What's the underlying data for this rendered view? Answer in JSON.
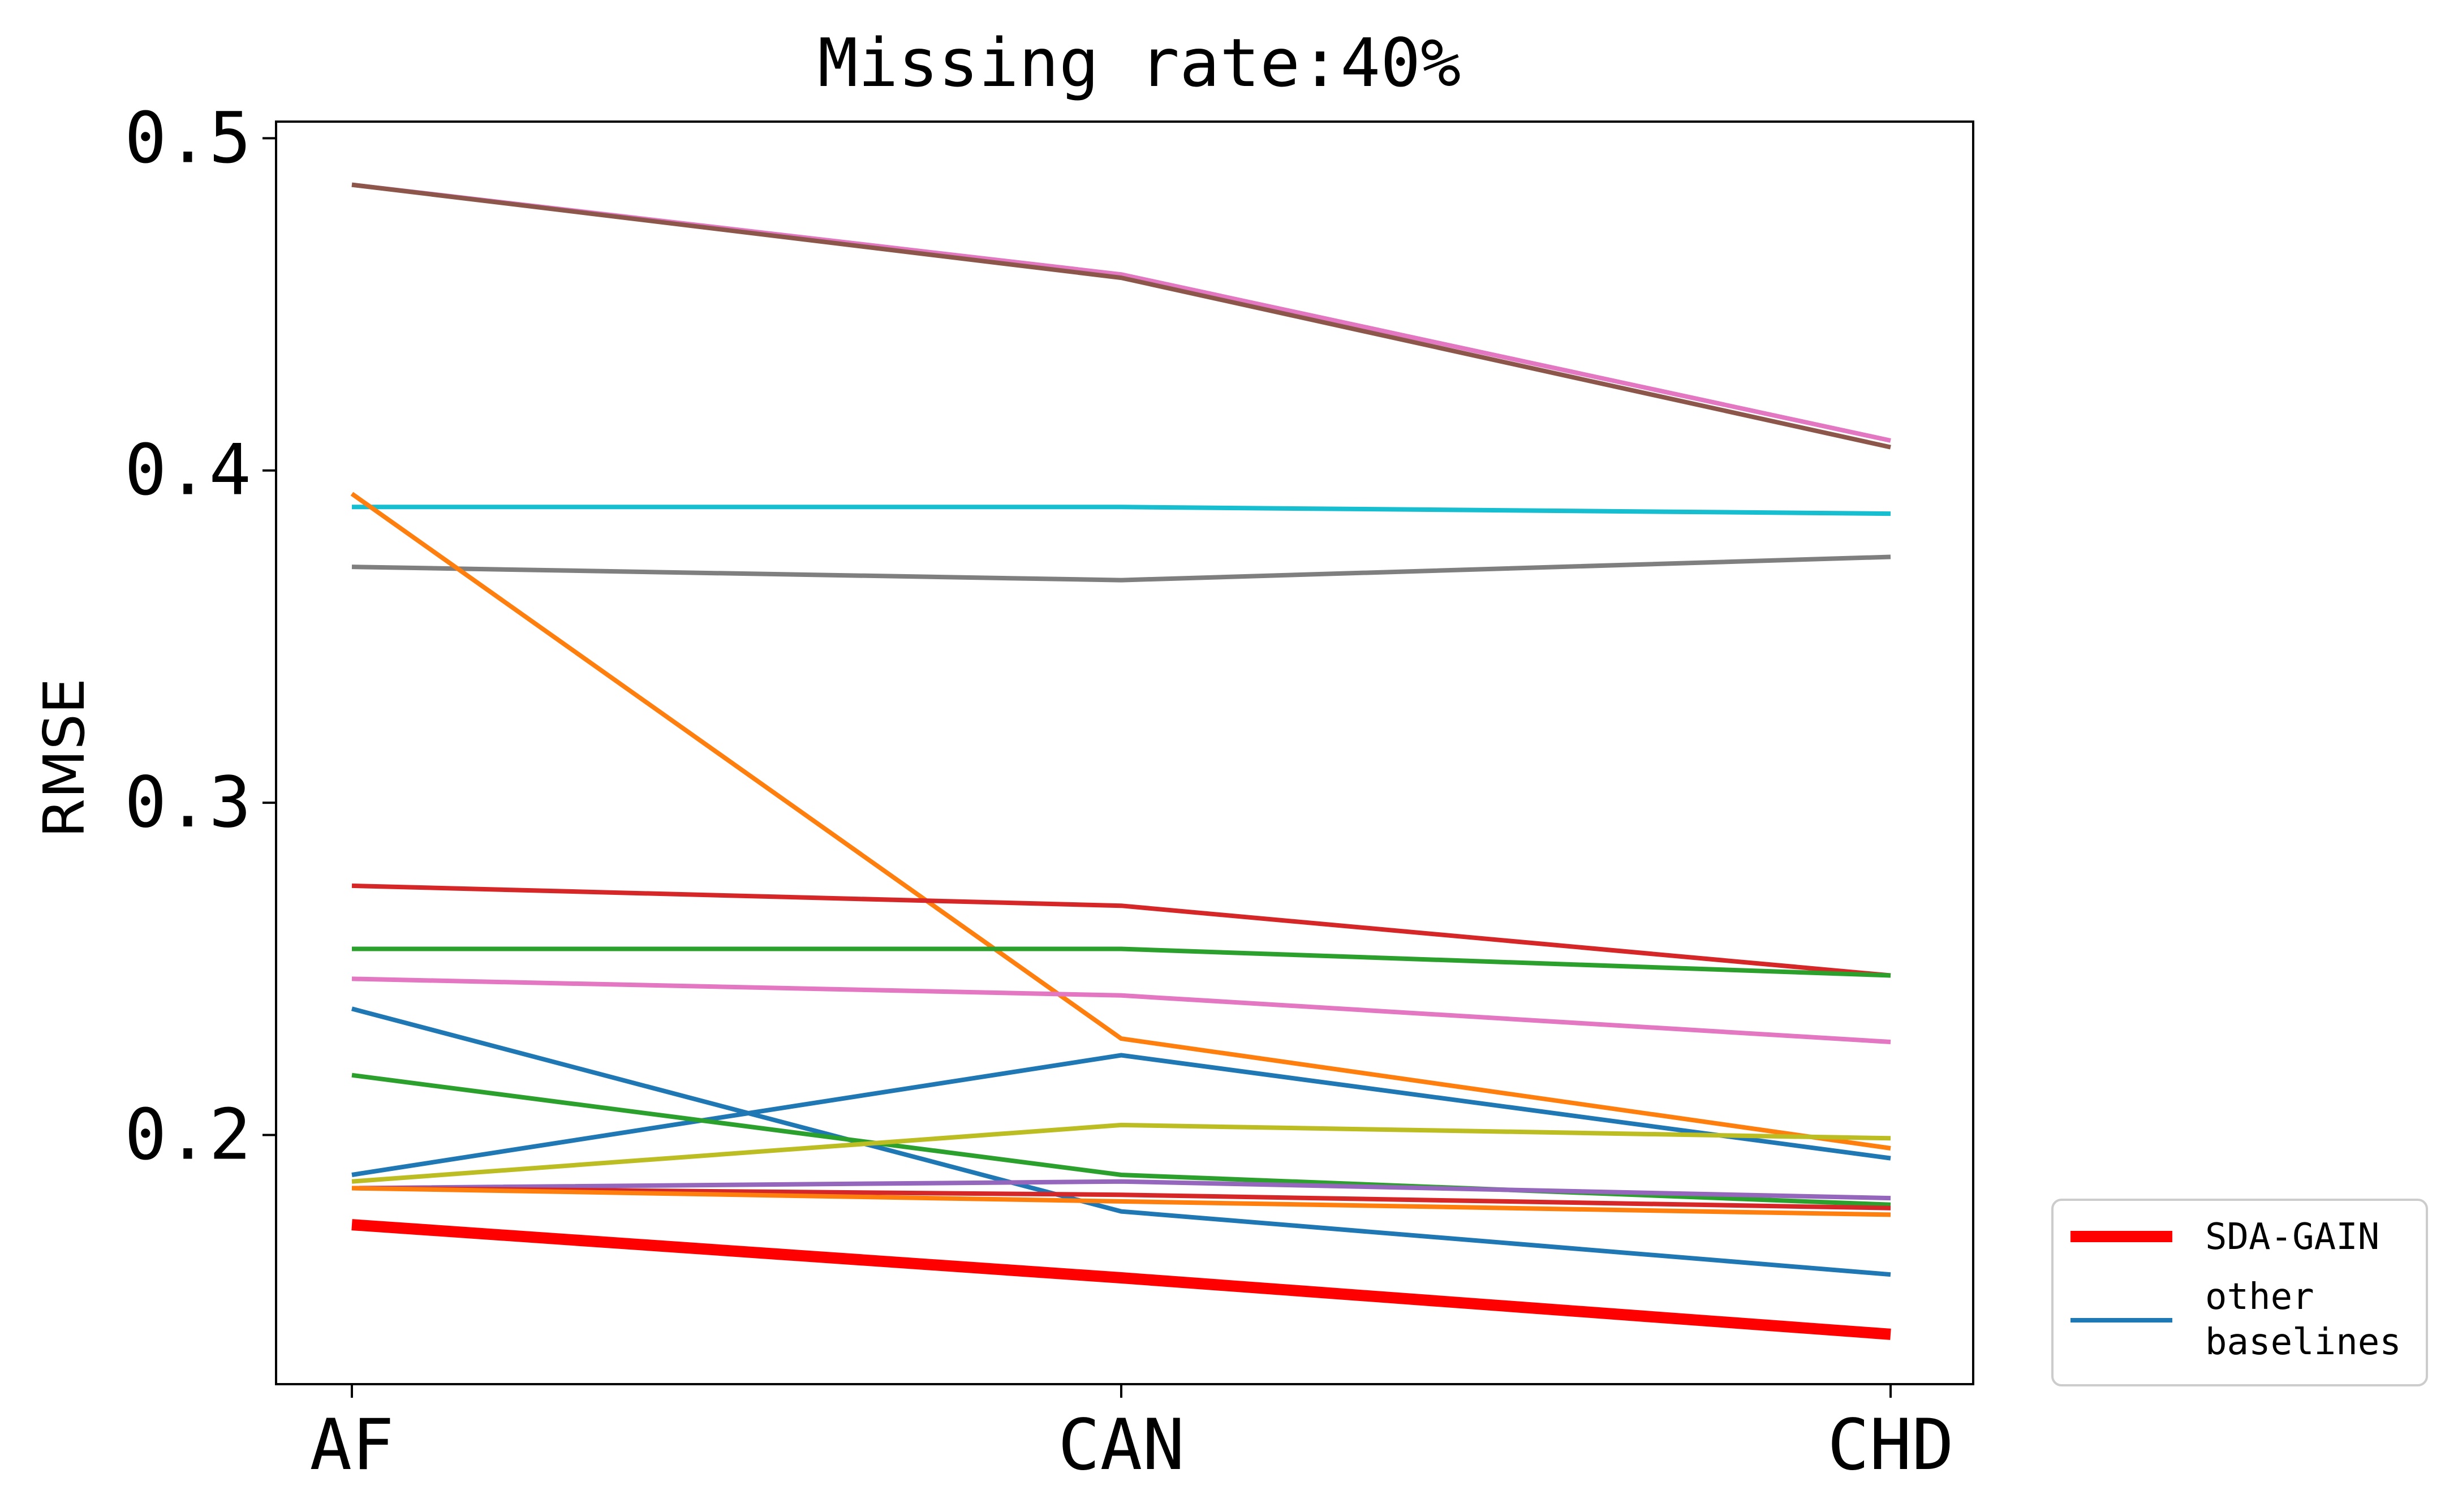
{
  "chart_data": {
    "type": "line",
    "title": "Missing rate:40%",
    "xlabel": "",
    "ylabel": "RMSE",
    "categories": [
      "AF",
      "CAN",
      "CHD"
    ],
    "ylim": [
      0.125,
      0.505
    ],
    "yticks": [
      "0.2",
      "0.3",
      "0.4",
      "0.5"
    ],
    "grid": false,
    "legend": {
      "placement": "outside-bottom-right",
      "entries": [
        {
          "label": "SDA-GAIN",
          "color": "#ff0000"
        },
        {
          "label": "other\nbaselines",
          "color": "#1f77b4"
        }
      ]
    },
    "series": [
      {
        "name": "SDA-GAIN",
        "color": "#ff0000",
        "values": [
          0.173,
          0.157,
          0.14
        ],
        "highlight": true
      },
      {
        "color": "#e377c2",
        "values": [
          0.486,
          0.459,
          0.409
        ]
      },
      {
        "color": "#8c564b",
        "values": [
          0.486,
          0.458,
          0.407
        ]
      },
      {
        "color": "#17becf",
        "values": [
          0.389,
          0.389,
          0.387
        ]
      },
      {
        "color": "#7f7f7f",
        "values": [
          0.371,
          0.367,
          0.374
        ]
      },
      {
        "color": "#ff7f0e",
        "values": [
          0.393,
          0.229,
          0.196
        ]
      },
      {
        "color": "#d62728",
        "values": [
          0.275,
          0.269,
          0.248
        ]
      },
      {
        "color": "#2ca02c",
        "values": [
          0.256,
          0.256,
          0.248
        ]
      },
      {
        "color": "#e377c2",
        "values": [
          0.247,
          0.242,
          0.228
        ]
      },
      {
        "color": "#1f77b4",
        "values": [
          0.238,
          0.177,
          0.158
        ]
      },
      {
        "color": "#1f77b4",
        "values": [
          0.188,
          0.224,
          0.193
        ]
      },
      {
        "color": "#2ca02c",
        "values": [
          0.218,
          0.188,
          0.179
        ]
      },
      {
        "color": "#bcbd22",
        "values": [
          0.186,
          0.203,
          0.199
        ]
      },
      {
        "color": "#9467bd",
        "values": [
          0.184,
          0.186,
          0.181
        ]
      },
      {
        "color": "#d62728",
        "values": [
          0.184,
          0.182,
          0.178
        ]
      },
      {
        "color": "#ff7f0e",
        "values": [
          0.184,
          0.18,
          0.176
        ]
      }
    ]
  }
}
